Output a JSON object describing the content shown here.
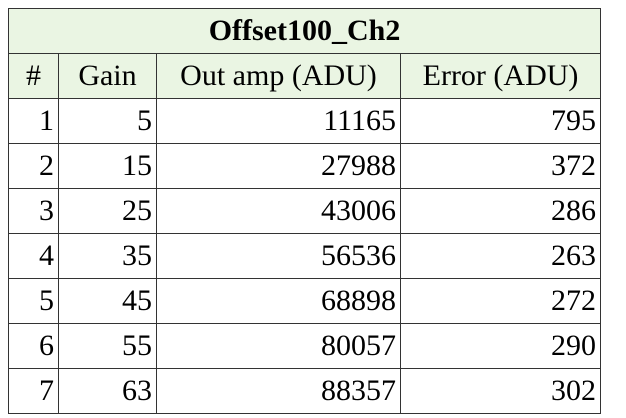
{
  "table": {
    "title": "Offset100_Ch2",
    "headers": [
      "#",
      "Gain",
      "Out amp (ADU)",
      "Error (ADU)"
    ],
    "rows": [
      [
        "1",
        "5",
        "11165",
        "795"
      ],
      [
        "2",
        "15",
        "27988",
        "372"
      ],
      [
        "3",
        "25",
        "43006",
        "286"
      ],
      [
        "4",
        "35",
        "56536",
        "263"
      ],
      [
        "5",
        "45",
        "68898",
        "272"
      ],
      [
        "6",
        "55",
        "80057",
        "290"
      ],
      [
        "7",
        "63",
        "88357",
        "302"
      ]
    ]
  },
  "colors": {
    "header_background": "#eaf5e3",
    "border": "#333333",
    "text": "#000000"
  }
}
